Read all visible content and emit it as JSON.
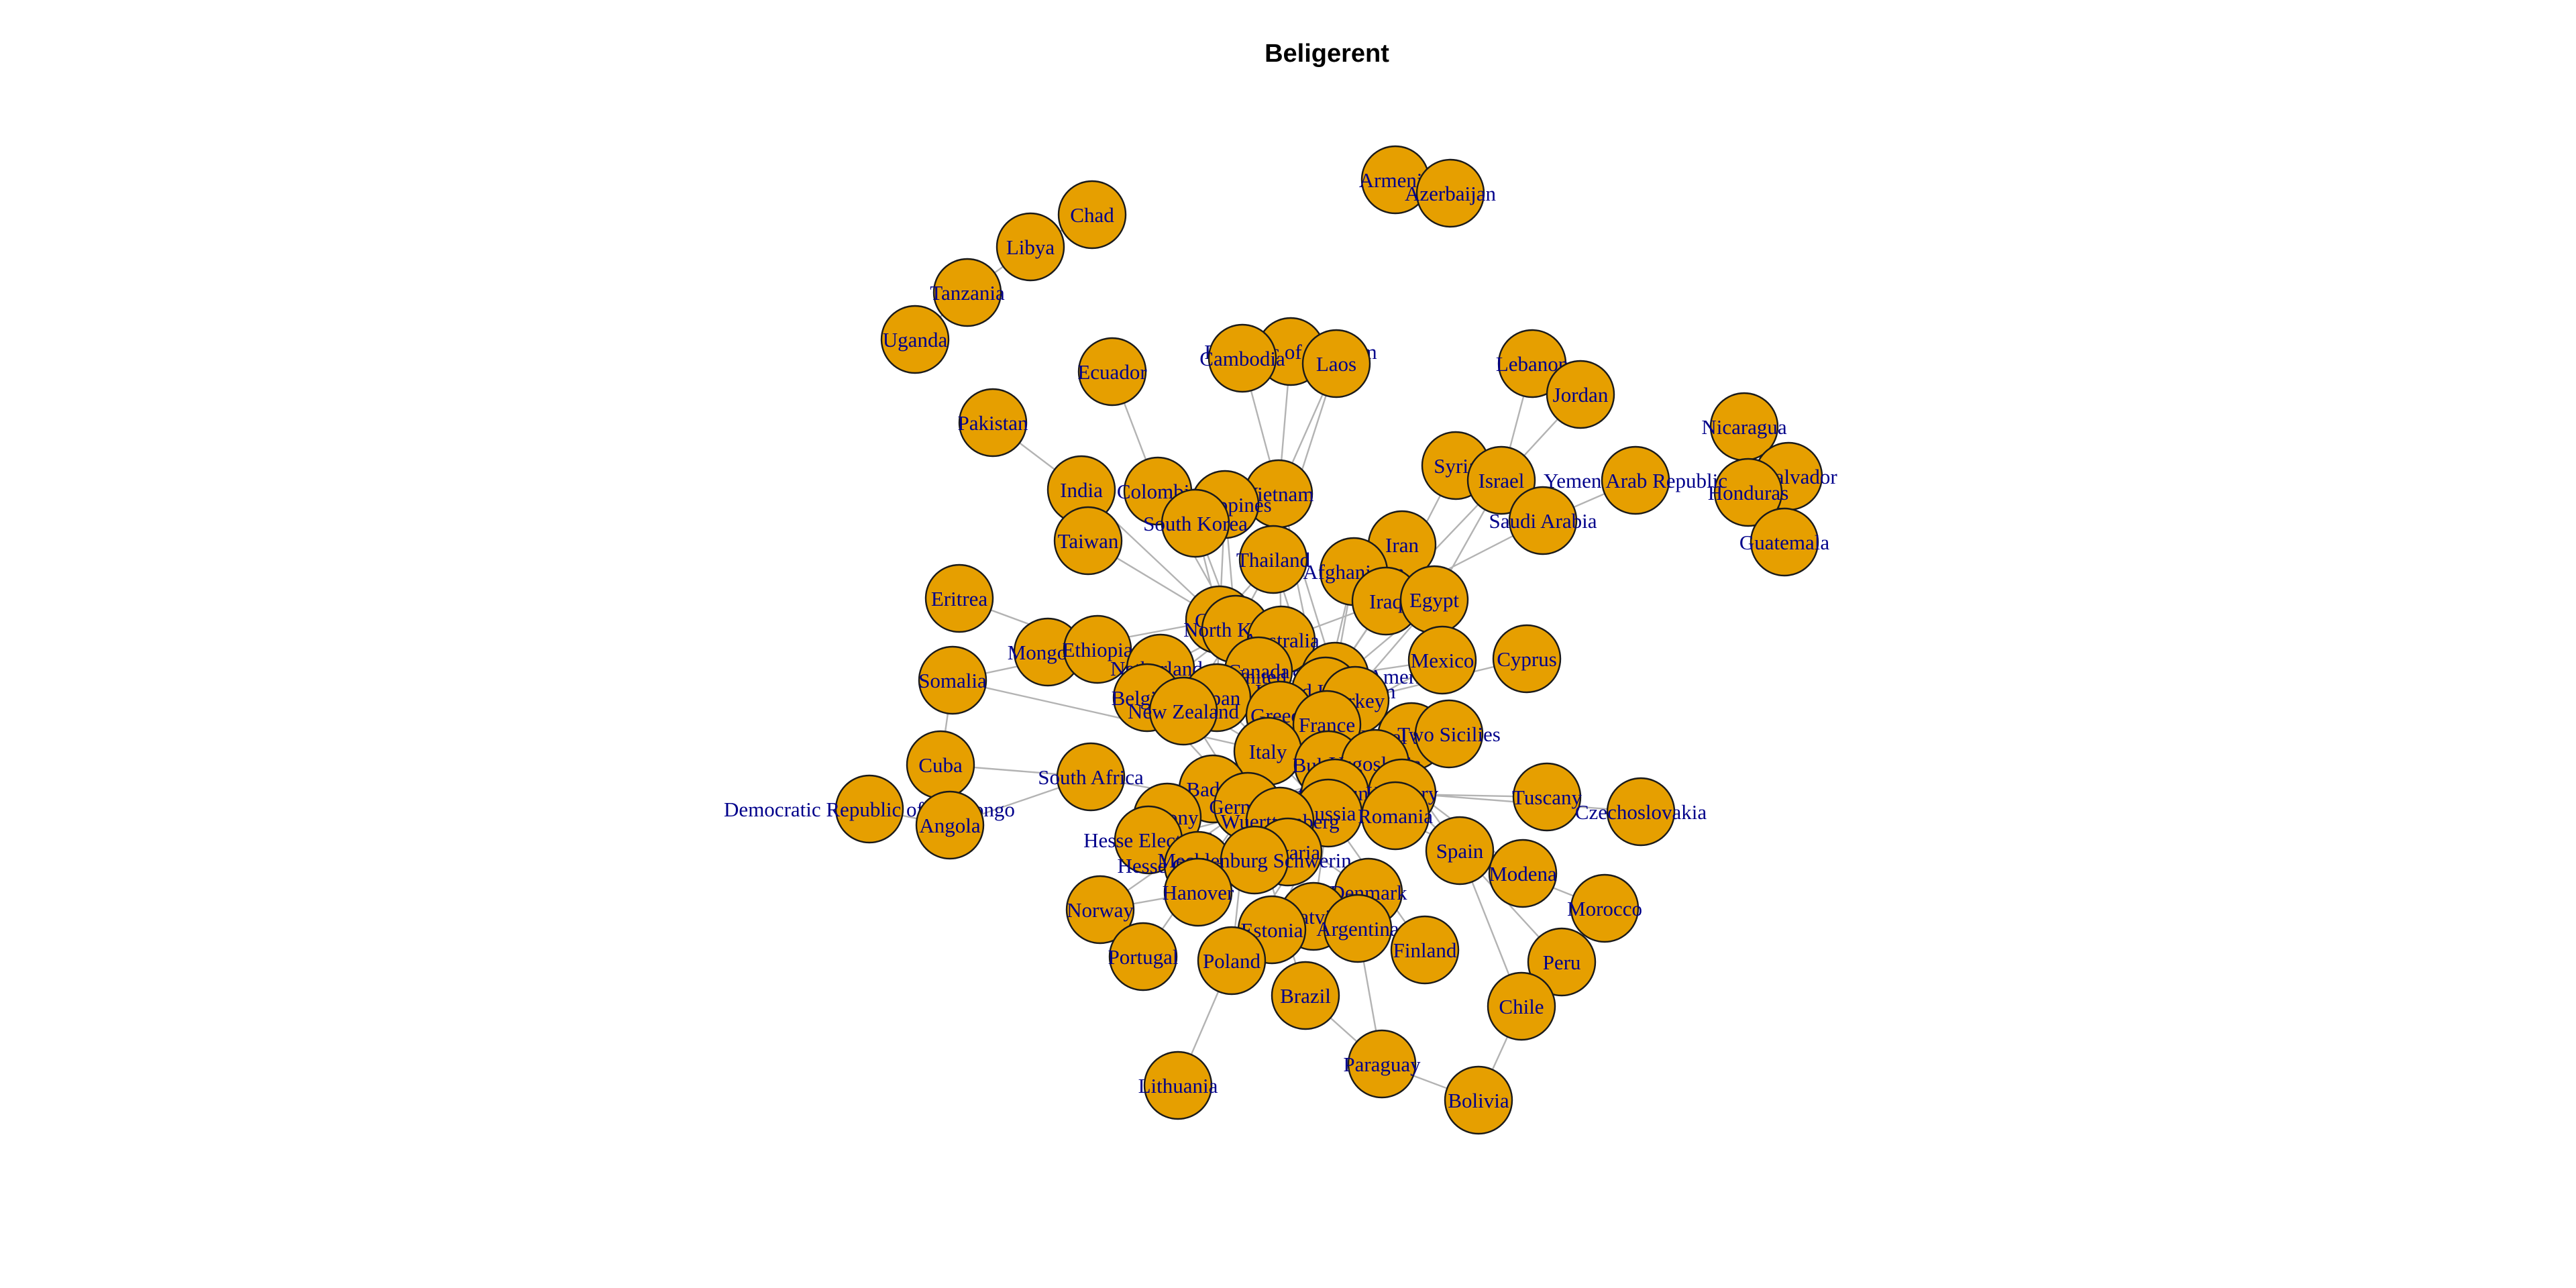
{
  "title": "Beligerent",
  "colors": {
    "node": "#e69f00",
    "node_border": "#1a1a1a",
    "edge": "#b3b3b3",
    "label": "#00008b"
  },
  "nodes": [
    "Armenia",
    "Azerbaijan",
    "Chad",
    "Libya",
    "Tanzania",
    "Uganda",
    "Republic of Vietnam",
    "Cambodia",
    "Laos",
    "Ecuador",
    "Lebanon",
    "Jordan",
    "Pakistan",
    "Nicaragua",
    "El Salvador",
    "Honduras",
    "Guatemala",
    "Syria",
    "Israel",
    "Yemen Arab Republic",
    "Saudi Arabia",
    "India",
    "Colombia",
    "Vietnam",
    "Philippines",
    "South Korea",
    "Taiwan",
    "Iran",
    "Thailand",
    "Afghanistan",
    "Iraq",
    "Egypt",
    "Eritrea",
    "China",
    "North Korea",
    "Australia",
    "Mongolia",
    "Ethiopia",
    "Netherlands",
    "Canada",
    "United States of America",
    "Mexico",
    "Cyprus",
    "Somalia",
    "United Kingdom",
    "Turkey",
    "Belgium",
    "Japan",
    "New Zealand",
    "Greece",
    "France",
    "Papal States",
    "Two Sicilies",
    "Cuba",
    "South Africa",
    "Italy",
    "Bulgaria",
    "Yugoslavia",
    "Baden",
    "Austria-Hungary",
    "Hungary",
    "Tuscany",
    "Czechoslovakia",
    "Germany",
    "Russia",
    "Romania",
    "Democratic Republic of the Congo",
    "Angola",
    "Saxony",
    "Wuerttemberg",
    "Hesse Electoral",
    "Bavaria",
    "Hesse Grand Ducal",
    "Mecklenburg Schwerin",
    "Spain",
    "Modena",
    "Denmark",
    "Morocco",
    "Hanover",
    "Norway",
    "Latvia",
    "Estonia",
    "Argentina",
    "Peru",
    "Portugal",
    "Poland",
    "Finland",
    "Chile",
    "Brazil",
    "Paraguay",
    "Lithuania",
    "Bolivia"
  ],
  "edges": [
    [
      "Armenia",
      "Azerbaijan"
    ],
    [
      "Chad",
      "Libya"
    ],
    [
      "Libya",
      "Tanzania"
    ],
    [
      "Tanzania",
      "Uganda"
    ],
    [
      "Republic of Vietnam",
      "Vietnam"
    ],
    [
      "Cambodia",
      "Vietnam"
    ],
    [
      "Laos",
      "Vietnam"
    ],
    [
      "Republic of Vietnam",
      "Cambodia"
    ],
    [
      "Laos",
      "Thailand"
    ],
    [
      "Ecuador",
      "Colombia"
    ],
    [
      "Pakistan",
      "India"
    ],
    [
      "India",
      "China"
    ],
    [
      "Taiwan",
      "China"
    ],
    [
      "Colombia",
      "North Korea"
    ],
    [
      "Philippines",
      "North Korea"
    ],
    [
      "South Korea",
      "China"
    ],
    [
      "South Korea",
      "North Korea"
    ],
    [
      "Vietnam",
      "Australia"
    ],
    [
      "Vietnam",
      "United States of America"
    ],
    [
      "Thailand",
      "China"
    ],
    [
      "Thailand",
      "North Korea"
    ],
    [
      "Philippines",
      "China"
    ],
    [
      "Lebanon",
      "Israel"
    ],
    [
      "Jordan",
      "Israel"
    ],
    [
      "Syria",
      "Israel"
    ],
    [
      "Israel",
      "Egypt"
    ],
    [
      "Israel",
      "Iraq"
    ],
    [
      "Saudi Arabia",
      "Iraq"
    ],
    [
      "Yemen Arab Republic",
      "Saudi Arabia"
    ],
    [
      "Syria",
      "Iraq"
    ],
    [
      "Egypt",
      "United Kingdom"
    ],
    [
      "Egypt",
      "France"
    ],
    [
      "Iran",
      "Iraq"
    ],
    [
      "Afghanistan",
      "United States of America"
    ],
    [
      "Iraq",
      "United States of America"
    ],
    [
      "Iraq",
      "United Kingdom"
    ],
    [
      "Iraq",
      "Australia"
    ],
    [
      "Afghanistan",
      "United Kingdom"
    ],
    [
      "Nicaragua",
      "Honduras"
    ],
    [
      "El Salvador",
      "Honduras"
    ],
    [
      "Guatemala",
      "El Salvador"
    ],
    [
      "Eritrea",
      "Ethiopia"
    ],
    [
      "Somalia",
      "Ethiopia"
    ],
    [
      "Somalia",
      "Cuba"
    ],
    [
      "Cuba",
      "Angola"
    ],
    [
      "Cuba",
      "South Africa"
    ],
    [
      "Angola",
      "South Africa"
    ],
    [
      "Democratic Republic of the Congo",
      "Angola"
    ],
    [
      "Mongolia",
      "China"
    ],
    [
      "Mongolia",
      "Japan"
    ],
    [
      "Mexico",
      "United States of America"
    ],
    [
      "China",
      "United States of America"
    ],
    [
      "North Korea",
      "United States of America"
    ],
    [
      "North Korea",
      "Canada"
    ],
    [
      "North Korea",
      "United Kingdom"
    ],
    [
      "North Korea",
      "Turkey"
    ],
    [
      "North Korea",
      "Australia"
    ],
    [
      "North Korea",
      "Netherlands"
    ],
    [
      "North Korea",
      "Belgium"
    ],
    [
      "North Korea",
      "Greece"
    ],
    [
      "North Korea",
      "France"
    ],
    [
      "North Korea",
      "New Zealand"
    ],
    [
      "Japan",
      "United States of America"
    ],
    [
      "Japan",
      "United Kingdom"
    ],
    [
      "Japan",
      "Australia"
    ],
    [
      "Japan",
      "New Zealand"
    ],
    [
      "Japan",
      "Netherlands"
    ],
    [
      "Japan",
      "China"
    ],
    [
      "Germany",
      "United States of America"
    ],
    [
      "Germany",
      "United Kingdom"
    ],
    [
      "Germany",
      "France"
    ],
    [
      "Germany",
      "Russia"
    ],
    [
      "Germany",
      "Belgium"
    ],
    [
      "Germany",
      "Netherlands"
    ],
    [
      "Germany",
      "Greece"
    ],
    [
      "Germany",
      "Yugoslavia"
    ],
    [
      "Germany",
      "Norway"
    ],
    [
      "Germany",
      "Poland"
    ],
    [
      "Germany",
      "Denmark"
    ],
    [
      "Germany",
      "Canada"
    ],
    [
      "Germany",
      "South Africa"
    ],
    [
      "Germany",
      "Australia"
    ],
    [
      "Germany",
      "Brazil"
    ],
    [
      "Italy",
      "France"
    ],
    [
      "Italy",
      "Greece"
    ],
    [
      "Italy",
      "United Kingdom"
    ],
    [
      "Italy",
      "Ethiopia"
    ],
    [
      "Italy",
      "Austria-Hungary"
    ],
    [
      "Italy",
      "Turkey"
    ],
    [
      "Italy",
      "Papal States"
    ],
    [
      "Italy",
      "Two Sicilies"
    ],
    [
      "Italy",
      "Yugoslavia"
    ],
    [
      "Italy",
      "Somalia"
    ],
    [
      "Bulgaria",
      "Greece"
    ],
    [
      "Bulgaria",
      "Romania"
    ],
    [
      "Bulgaria",
      "Yugoslavia"
    ],
    [
      "Bulgaria",
      "Turkey"
    ],
    [
      "Austria-Hungary",
      "Russia"
    ],
    [
      "Austria-Hungary",
      "France"
    ],
    [
      "Austria-Hungary",
      "United Kingdom"
    ],
    [
      "Austria-Hungary",
      "Romania"
    ],
    [
      "Austria-Hungary",
      "Yugoslavia"
    ],
    [
      "Austria-Hungary",
      "Bavaria"
    ],
    [
      "Austria-Hungary",
      "Saxony"
    ],
    [
      "Austria-Hungary",
      "Hanover"
    ],
    [
      "Austria-Hungary",
      "Baden"
    ],
    [
      "Austria-Hungary",
      "Wuerttemberg"
    ],
    [
      "Austria-Hungary",
      "Hesse Electoral"
    ],
    [
      "Austria-Hungary",
      "Hesse Grand Ducal"
    ],
    [
      "Austria-Hungary",
      "Mecklenburg Schwerin"
    ],
    [
      "Austria-Hungary",
      "Tuscany"
    ],
    [
      "Austria-Hungary",
      "Modena"
    ],
    [
      "Austria-Hungary",
      "Two Sicilies"
    ],
    [
      "Hungary",
      "Czechoslovakia"
    ],
    [
      "Hungary",
      "Romania"
    ],
    [
      "Hungary",
      "Russia"
    ],
    [
      "Russia",
      "Finland"
    ],
    [
      "Russia",
      "Turkey"
    ],
    [
      "Russia",
      "Japan"
    ],
    [
      "Russia",
      "Latvia"
    ],
    [
      "Russia",
      "Estonia"
    ],
    [
      "Russia",
      "Poland"
    ],
    [
      "Russia",
      "Romania"
    ],
    [
      "Russia",
      "France"
    ],
    [
      "Russia",
      "United Kingdom"
    ],
    [
      "Spain",
      "United States of America"
    ],
    [
      "Spain",
      "Morocco"
    ],
    [
      "Spain",
      "Peru"
    ],
    [
      "Spain",
      "Chile"
    ],
    [
      "France",
      "Mexico"
    ],
    [
      "France",
      "Spain"
    ],
    [
      "France",
      "Modena"
    ],
    [
      "France",
      "Vietnam"
    ],
    [
      "France",
      "Thailand"
    ],
    [
      "Turkey",
      "Greece"
    ],
    [
      "Turkey",
      "Cyprus"
    ],
    [
      "Turkey",
      "Yugoslavia"
    ],
    [
      "Estonia",
      "Latvia"
    ],
    [
      "Poland",
      "Lithuania"
    ],
    [
      "Poland",
      "Latvia"
    ],
    [
      "Argentina",
      "Paraguay"
    ],
    [
      "Brazil",
      "Paraguay"
    ],
    [
      "Paraguay",
      "Bolivia"
    ],
    [
      "Bolivia",
      "Chile"
    ],
    [
      "Chile",
      "Peru"
    ],
    [
      "Argentina",
      "Denmark"
    ],
    [
      "Portugal",
      "Germany"
    ],
    [
      "Hanover",
      "Norway"
    ],
    [
      "Saxony",
      "Baden"
    ],
    [
      "Netherlands",
      "Belgium"
    ],
    [
      "Canada",
      "United Kingdom"
    ],
    [
      "United States of America",
      "United Kingdom"
    ],
    [
      "New Zealand",
      "Greece"
    ]
  ]
}
